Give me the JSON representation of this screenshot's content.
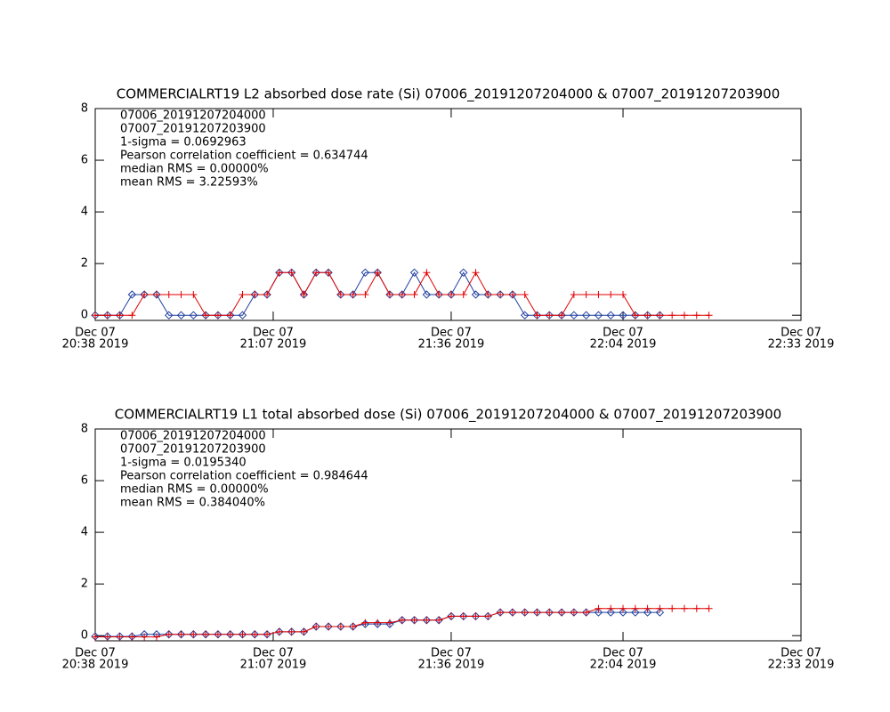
{
  "chart_data": [
    {
      "type": "line",
      "title": "COMMERCIALRT19 L2 absorbed dose rate (Si) 07006_20191207204000 & 07007_20191207203900",
      "x": [
        "2019-12-07 20:38",
        "2019-12-07 20:40",
        "2019-12-07 20:42",
        "2019-12-07 20:44",
        "2019-12-07 20:46",
        "2019-12-07 20:48",
        "2019-12-07 20:50",
        "2019-12-07 20:52",
        "2019-12-07 20:54",
        "2019-12-07 20:56",
        "2019-12-07 20:58",
        "2019-12-07 21:00",
        "2019-12-07 21:02",
        "2019-12-07 21:04",
        "2019-12-07 21:06",
        "2019-12-07 21:08",
        "2019-12-07 21:10",
        "2019-12-07 21:12",
        "2019-12-07 21:14",
        "2019-12-07 21:16",
        "2019-12-07 21:18",
        "2019-12-07 21:20",
        "2019-12-07 21:22",
        "2019-12-07 21:24",
        "2019-12-07 21:26",
        "2019-12-07 21:28",
        "2019-12-07 21:30",
        "2019-12-07 21:32",
        "2019-12-07 21:34",
        "2019-12-07 21:36",
        "2019-12-07 21:38",
        "2019-12-07 21:40",
        "2019-12-07 21:42",
        "2019-12-07 21:44",
        "2019-12-07 21:46",
        "2019-12-07 21:48",
        "2019-12-07 21:50",
        "2019-12-07 21:52",
        "2019-12-07 21:54",
        "2019-12-07 21:56",
        "2019-12-07 21:58",
        "2019-12-07 22:00",
        "2019-12-07 22:02",
        "2019-12-07 22:04",
        "2019-12-07 22:06",
        "2019-12-07 22:08",
        "2019-12-07 22:10",
        "2019-12-07 22:12",
        "2019-12-07 22:14",
        "2019-12-07 22:16",
        "2019-12-07 22:18"
      ],
      "series": [
        {
          "name": "07006_20191207204000",
          "color": "#1f3f9f",
          "marker": "diamond",
          "values": [
            0,
            0,
            0,
            0.8,
            0.8,
            0.8,
            0,
            0,
            0,
            0,
            0,
            0,
            0,
            0.8,
            0.8,
            1.65,
            1.65,
            0.8,
            1.65,
            1.65,
            0.8,
            0.8,
            1.65,
            1.65,
            0.8,
            0.8,
            1.65,
            0.8,
            0.8,
            0.8,
            1.65,
            0.8,
            0.8,
            0.8,
            0.8,
            0,
            0,
            0,
            0,
            0,
            0,
            0,
            0,
            0,
            0,
            0,
            0,
            null,
            null,
            null,
            null
          ]
        },
        {
          "name": "07007_20191207203900",
          "color": "#e00000",
          "marker": "plus",
          "values": [
            0,
            0,
            0,
            0,
            0.8,
            0.8,
            0.8,
            0.8,
            0.8,
            0,
            0,
            0,
            0.8,
            0.8,
            0.8,
            1.65,
            1.65,
            0.8,
            1.65,
            1.65,
            0.8,
            0.8,
            0.8,
            1.65,
            0.8,
            0.8,
            0.8,
            1.65,
            0.8,
            0.8,
            0.8,
            1.65,
            0.8,
            0.8,
            0.8,
            0.8,
            0,
            0,
            0,
            0.8,
            0.8,
            0.8,
            0.8,
            0.8,
            0,
            0,
            0,
            0,
            0,
            0,
            0
          ]
        }
      ],
      "annotations": [
        "1-sigma = 0.0692963",
        "Pearson correlation coefficient = 0.634744",
        "median RMS = 0.00000%",
        "mean RMS = 3.22593%"
      ],
      "xlim": [
        "2019-12-07 20:38",
        "2019-12-07 22:33"
      ],
      "xticks": [
        {
          "value": "2019-12-07 20:38",
          "label": [
            "Dec 07",
            "20:38 2019"
          ]
        },
        {
          "value": "2019-12-07 21:07",
          "label": [
            "Dec 07",
            "21:07 2019"
          ]
        },
        {
          "value": "2019-12-07 21:36",
          "label": [
            "Dec 07",
            "21:36 2019"
          ]
        },
        {
          "value": "2019-12-07 22:04",
          "label": [
            "Dec 07",
            "22:04 2019"
          ]
        },
        {
          "value": "2019-12-07 22:33",
          "label": [
            "Dec 07",
            "22:33 2019"
          ]
        }
      ],
      "ylim": [
        -0.2,
        8
      ],
      "yticks": [
        0,
        2,
        4,
        6,
        8
      ]
    },
    {
      "type": "line",
      "title": "COMMERCIALRT19 L1 total absorbed dose (Si) 07006_20191207204000 & 07007_20191207203900",
      "x": [
        "2019-12-07 20:38",
        "2019-12-07 20:40",
        "2019-12-07 20:42",
        "2019-12-07 20:44",
        "2019-12-07 20:46",
        "2019-12-07 20:48",
        "2019-12-07 20:50",
        "2019-12-07 20:52",
        "2019-12-07 20:54",
        "2019-12-07 20:56",
        "2019-12-07 20:58",
        "2019-12-07 21:00",
        "2019-12-07 21:02",
        "2019-12-07 21:04",
        "2019-12-07 21:06",
        "2019-12-07 21:08",
        "2019-12-07 21:10",
        "2019-12-07 21:12",
        "2019-12-07 21:14",
        "2019-12-07 21:16",
        "2019-12-07 21:18",
        "2019-12-07 21:20",
        "2019-12-07 21:22",
        "2019-12-07 21:24",
        "2019-12-07 21:26",
        "2019-12-07 21:28",
        "2019-12-07 21:30",
        "2019-12-07 21:32",
        "2019-12-07 21:34",
        "2019-12-07 21:36",
        "2019-12-07 21:38",
        "2019-12-07 21:40",
        "2019-12-07 21:42",
        "2019-12-07 21:44",
        "2019-12-07 21:46",
        "2019-12-07 21:48",
        "2019-12-07 21:50",
        "2019-12-07 21:52",
        "2019-12-07 21:54",
        "2019-12-07 21:56",
        "2019-12-07 21:58",
        "2019-12-07 22:00",
        "2019-12-07 22:02",
        "2019-12-07 22:04",
        "2019-12-07 22:06",
        "2019-12-07 22:08",
        "2019-12-07 22:10",
        "2019-12-07 22:12",
        "2019-12-07 22:14",
        "2019-12-07 22:16",
        "2019-12-07 22:18"
      ],
      "series": [
        {
          "name": "07006_20191207204000",
          "color": "#1f3f9f",
          "marker": "diamond",
          "values": [
            -0.03,
            -0.03,
            -0.03,
            -0.03,
            0.05,
            0.05,
            0.05,
            0.05,
            0.05,
            0.05,
            0.05,
            0.05,
            0.05,
            0.05,
            0.05,
            0.15,
            0.15,
            0.15,
            0.35,
            0.35,
            0.35,
            0.35,
            0.45,
            0.45,
            0.45,
            0.6,
            0.6,
            0.6,
            0.6,
            0.75,
            0.75,
            0.75,
            0.75,
            0.9,
            0.9,
            0.9,
            0.9,
            0.9,
            0.9,
            0.9,
            0.9,
            0.9,
            0.9,
            0.9,
            0.9,
            0.9,
            0.9,
            null,
            null,
            null,
            null
          ]
        },
        {
          "name": "07007_20191207203900",
          "color": "#e00000",
          "marker": "plus",
          "values": [
            -0.05,
            -0.05,
            -0.05,
            -0.05,
            -0.05,
            -0.05,
            0.05,
            0.05,
            0.05,
            0.05,
            0.05,
            0.05,
            0.05,
            0.05,
            0.05,
            0.15,
            0.15,
            0.15,
            0.35,
            0.35,
            0.35,
            0.35,
            0.5,
            0.5,
            0.5,
            0.6,
            0.6,
            0.6,
            0.6,
            0.75,
            0.75,
            0.75,
            0.75,
            0.9,
            0.9,
            0.9,
            0.9,
            0.9,
            0.9,
            0.9,
            0.9,
            1.05,
            1.05,
            1.05,
            1.05,
            1.05,
            1.05,
            1.05,
            1.05,
            1.05,
            1.05
          ]
        }
      ],
      "annotations": [
        "1-sigma = 0.0195340",
        "Pearson correlation coefficient = 0.984644",
        "median RMS = 0.00000%",
        "mean RMS = 0.384040%"
      ],
      "xlim": [
        "2019-12-07 20:38",
        "2019-12-07 22:33"
      ],
      "xticks": [
        {
          "value": "2019-12-07 20:38",
          "label": [
            "Dec 07",
            "20:38 2019"
          ]
        },
        {
          "value": "2019-12-07 21:07",
          "label": [
            "Dec 07",
            "21:07 2019"
          ]
        },
        {
          "value": "2019-12-07 21:36",
          "label": [
            "Dec 07",
            "21:36 2019"
          ]
        },
        {
          "value": "2019-12-07 22:04",
          "label": [
            "Dec 07",
            "22:04 2019"
          ]
        },
        {
          "value": "2019-12-07 22:33",
          "label": [
            "Dec 07",
            "22:33 2019"
          ]
        }
      ],
      "ylim": [
        -0.2,
        8
      ],
      "yticks": [
        0,
        2,
        4,
        6,
        8
      ]
    }
  ]
}
